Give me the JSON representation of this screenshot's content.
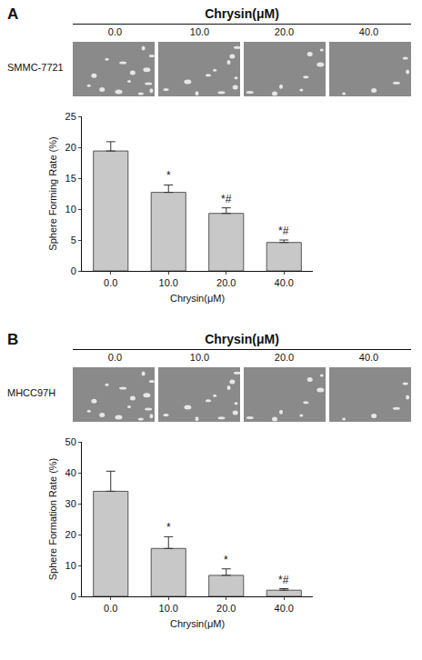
{
  "chart_data": [
    {
      "type": "bar",
      "panel": "A",
      "header": "Chrysin(μM)",
      "image_labels": [
        "0.0",
        "10.0",
        "20.0",
        "40.0"
      ],
      "cell_line": "SMMC-7721",
      "categories": [
        "0.0",
        "10.0",
        "20.0",
        "40.0"
      ],
      "values": [
        19.4,
        12.7,
        9.3,
        4.6
      ],
      "errors": [
        1.5,
        1.2,
        0.9,
        0.4
      ],
      "color": "#c8c8c8",
      "xlabel": "Chrysin(μM)",
      "ylabel": "Sphere Forming Rate (%)",
      "ylim": [
        0,
        25
      ],
      "yticks": [
        0,
        5,
        10,
        15,
        20,
        25
      ],
      "grid": false,
      "annotations": [
        {
          "category": "10.0",
          "text": "*"
        },
        {
          "category": "20.0",
          "text": "*#"
        },
        {
          "category": "40.0",
          "text": "*#"
        }
      ]
    },
    {
      "type": "bar",
      "panel": "B",
      "header": "Chrysin(μM)",
      "image_labels": [
        "0.0",
        "10.0",
        "20.0",
        "40.0"
      ],
      "cell_line": "MHCC97H",
      "categories": [
        "0.0",
        "10.0",
        "20.0",
        "40.0"
      ],
      "values": [
        34,
        15.5,
        6.8,
        2
      ],
      "errors": [
        6.5,
        3.8,
        2.1,
        0.5
      ],
      "color": "#c8c8c8",
      "xlabel": "Chrysin(μM)",
      "ylabel": "Sphere Formation Rate (%)",
      "ylim": [
        0,
        50
      ],
      "yticks": [
        0,
        10,
        20,
        30,
        40,
        50
      ],
      "grid": false,
      "annotations": [
        {
          "category": "10.0",
          "text": "*"
        },
        {
          "category": "20.0",
          "text": "*"
        },
        {
          "category": "40.0",
          "text": "*#"
        }
      ]
    }
  ]
}
